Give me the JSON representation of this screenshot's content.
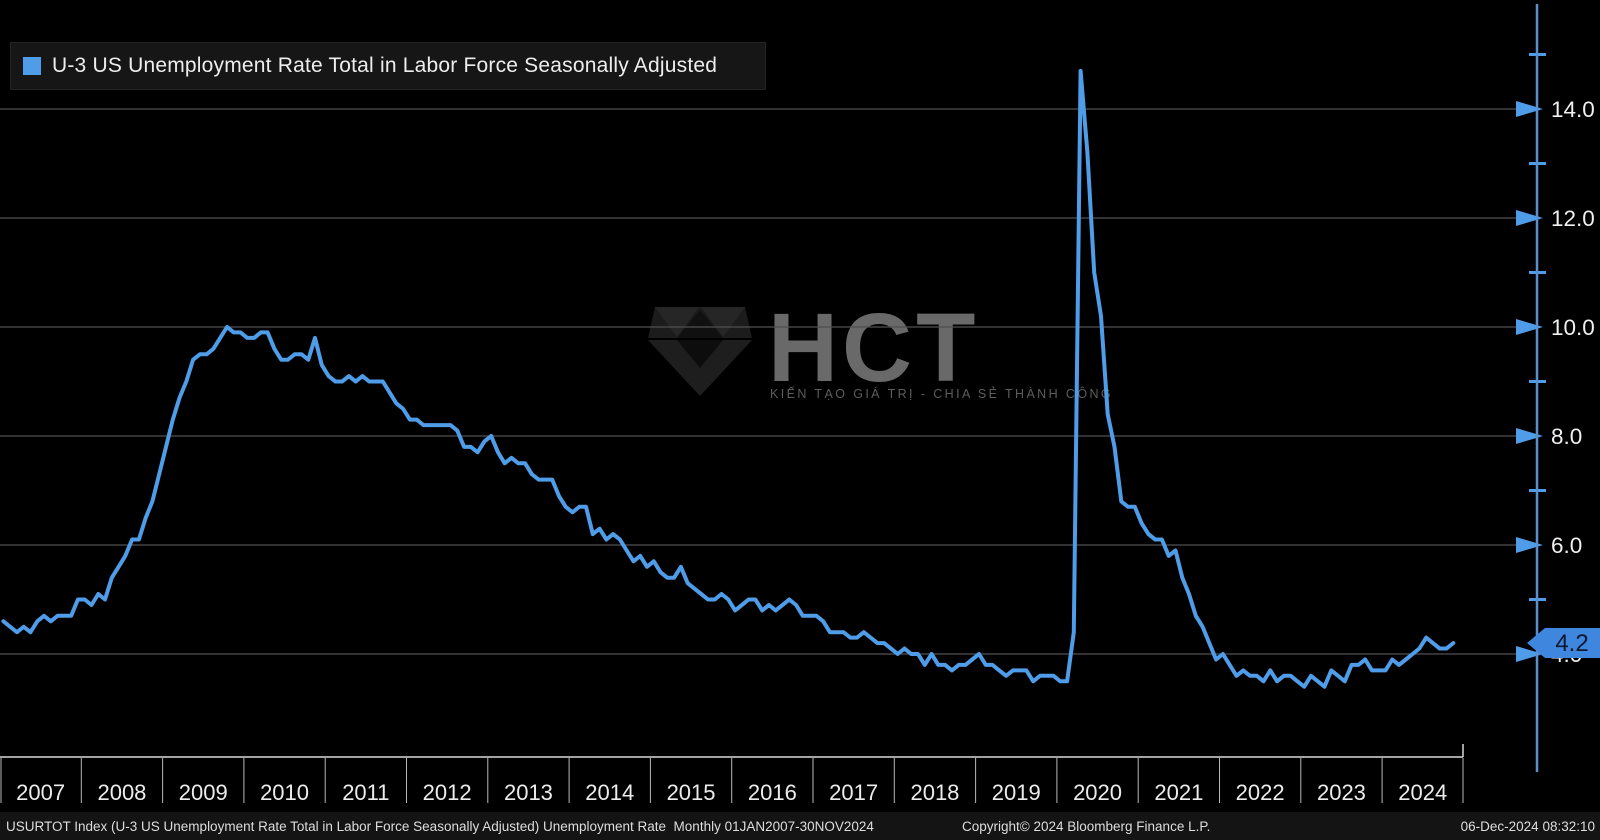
{
  "legend": {
    "swatch_color": "#4f9ce8",
    "label": "U-3 US Unemployment Rate Total in Labor Force Seasonally Adjusted"
  },
  "watermark": {
    "text": "HCT",
    "tagline": "KIẾN TẠO GIÁ TRỊ - CHIA SẺ THÀNH CÔNG"
  },
  "y_axis": {
    "tick_labels": [
      "14.0",
      "12.0",
      "10.0",
      "8.0",
      "6.0",
      "4.0"
    ],
    "tick_values": [
      14,
      12,
      10,
      8,
      6,
      4
    ],
    "minor_tick_values": [
      15,
      13,
      11,
      9,
      7,
      5
    ],
    "last_price_badge": "4.2"
  },
  "x_axis": {
    "tick_labels": [
      "2007",
      "2008",
      "2009",
      "2010",
      "2011",
      "2012",
      "2013",
      "2014",
      "2015",
      "2016",
      "2017",
      "2018",
      "2019",
      "2020",
      "2021",
      "2022",
      "2023",
      "2024"
    ]
  },
  "status_bar": {
    "left": "USURTOT Index (U-3 US Unemployment Rate Total in Labor Force Seasonally Adjusted) Unemployment Rate  Monthly 01JAN2007-30NOV2024",
    "copyright": "Copyright© 2024 Bloomberg Finance L.P.",
    "timestamp": "06-Dec-2024 08:32:10"
  },
  "chart_data": {
    "type": "line",
    "title": "U-3 US Unemployment Rate Total in Labor Force Seasonally Adjusted",
    "series_name": "USURTOT Index",
    "frequency": "Monthly",
    "x_start": "2007-01",
    "x_end": "2024-11",
    "x_tick_labels": [
      "2007",
      "2008",
      "2009",
      "2010",
      "2011",
      "2012",
      "2013",
      "2014",
      "2015",
      "2016",
      "2017",
      "2018",
      "2019",
      "2020",
      "2021",
      "2022",
      "2023",
      "2024"
    ],
    "y_ticks": [
      4.0,
      6.0,
      8.0,
      10.0,
      12.0,
      14.0
    ],
    "ylim": [
      2.1,
      16.0
    ],
    "xlabel": "",
    "ylabel": "",
    "grid": true,
    "legend_position": "top-left",
    "line_color": "#4f9ce8",
    "last_value": 4.2,
    "values": [
      4.6,
      4.5,
      4.4,
      4.5,
      4.4,
      4.6,
      4.7,
      4.6,
      4.7,
      4.7,
      4.7,
      5.0,
      5.0,
      4.9,
      5.1,
      5.0,
      5.4,
      5.6,
      5.8,
      6.1,
      6.1,
      6.5,
      6.8,
      7.3,
      7.8,
      8.3,
      8.7,
      9.0,
      9.4,
      9.5,
      9.5,
      9.6,
      9.8,
      10.0,
      9.9,
      9.9,
      9.8,
      9.8,
      9.9,
      9.9,
      9.6,
      9.4,
      9.4,
      9.5,
      9.5,
      9.4,
      9.8,
      9.3,
      9.1,
      9.0,
      9.0,
      9.1,
      9.0,
      9.1,
      9.0,
      9.0,
      9.0,
      8.8,
      8.6,
      8.5,
      8.3,
      8.3,
      8.2,
      8.2,
      8.2,
      8.2,
      8.2,
      8.1,
      7.8,
      7.8,
      7.7,
      7.9,
      8.0,
      7.7,
      7.5,
      7.6,
      7.5,
      7.5,
      7.3,
      7.2,
      7.2,
      7.2,
      6.9,
      6.7,
      6.6,
      6.7,
      6.7,
      6.2,
      6.3,
      6.1,
      6.2,
      6.1,
      5.9,
      5.7,
      5.8,
      5.6,
      5.7,
      5.5,
      5.4,
      5.4,
      5.6,
      5.3,
      5.2,
      5.1,
      5.0,
      5.0,
      5.1,
      5.0,
      4.8,
      4.9,
      5.0,
      5.0,
      4.8,
      4.9,
      4.8,
      4.9,
      5.0,
      4.9,
      4.7,
      4.7,
      4.7,
      4.6,
      4.4,
      4.4,
      4.4,
      4.3,
      4.3,
      4.4,
      4.3,
      4.2,
      4.2,
      4.1,
      4.0,
      4.1,
      4.0,
      4.0,
      3.8,
      4.0,
      3.8,
      3.8,
      3.7,
      3.8,
      3.8,
      3.9,
      4.0,
      3.8,
      3.8,
      3.7,
      3.6,
      3.7,
      3.7,
      3.7,
      3.5,
      3.6,
      3.6,
      3.6,
      3.5,
      3.5,
      4.4,
      14.7,
      13.2,
      11.0,
      10.2,
      8.4,
      7.8,
      6.8,
      6.7,
      6.7,
      6.4,
      6.2,
      6.1,
      6.1,
      5.8,
      5.9,
      5.4,
      5.1,
      4.7,
      4.5,
      4.2,
      3.9,
      4.0,
      3.8,
      3.6,
      3.7,
      3.6,
      3.6,
      3.5,
      3.7,
      3.5,
      3.6,
      3.6,
      3.5,
      3.4,
      3.6,
      3.5,
      3.4,
      3.7,
      3.6,
      3.5,
      3.8,
      3.8,
      3.9,
      3.7,
      3.7,
      3.7,
      3.9,
      3.8,
      3.9,
      4.0,
      4.1,
      4.3,
      4.2,
      4.1,
      4.1,
      4.2
    ]
  }
}
